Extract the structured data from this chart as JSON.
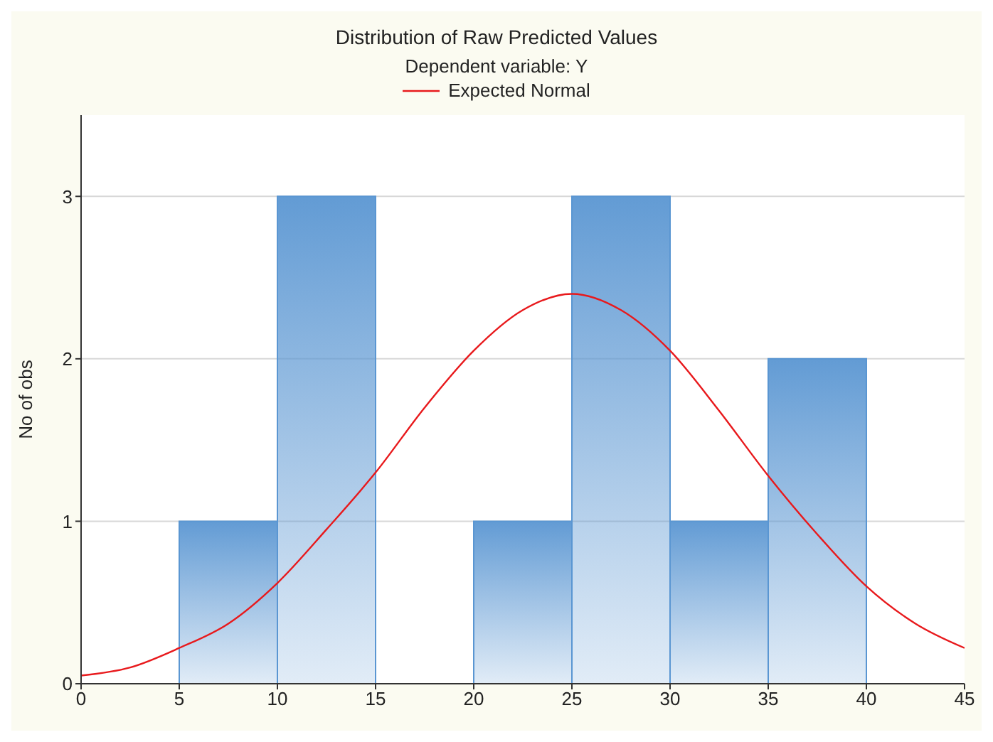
{
  "chart_data": {
    "type": "histogram",
    "title": "Distribution of Raw Predicted Values",
    "subtitle": "Dependent variable: Y",
    "ylabel": "No of obs",
    "bins": [
      5,
      10,
      15,
      20,
      25,
      30,
      35,
      40
    ],
    "values": [
      1,
      3,
      0,
      1,
      3,
      1,
      2
    ],
    "color": "#5a96d2",
    "series": [
      {
        "name": "Expected Normal",
        "type": "line",
        "color": "#e8191c",
        "x": [
          0,
          2.5,
          5,
          7.5,
          10,
          12.5,
          15,
          17.5,
          20,
          22.5,
          25,
          27.5,
          30,
          32.5,
          35,
          37.5,
          40,
          42.5,
          45
        ],
        "values": [
          0.05,
          0.1,
          0.22,
          0.37,
          0.62,
          0.95,
          1.3,
          1.7,
          2.05,
          2.3,
          2.4,
          2.3,
          2.05,
          1.68,
          1.28,
          0.92,
          0.6,
          0.37,
          0.22
        ]
      }
    ],
    "xlim": [
      0,
      45
    ],
    "xticks": [
      0,
      5,
      10,
      15,
      20,
      25,
      30,
      35,
      40,
      45
    ],
    "ylim": [
      0,
      3.5
    ],
    "yticks": [
      0,
      1,
      2,
      3
    ],
    "grid": "y",
    "legend": "top"
  }
}
